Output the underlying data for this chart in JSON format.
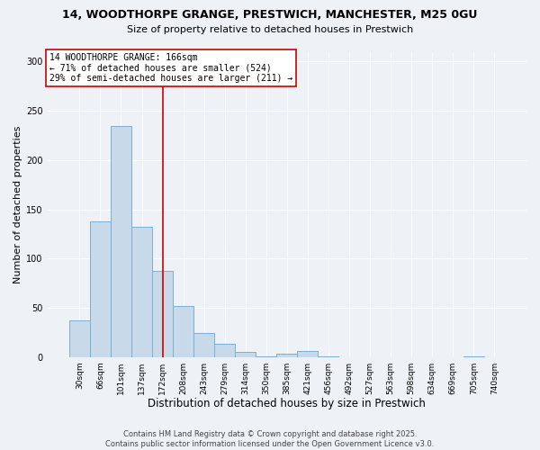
{
  "title": "14, WOODTHORPE GRANGE, PRESTWICH, MANCHESTER, M25 0GU",
  "subtitle": "Size of property relative to detached houses in Prestwich",
  "xlabel": "Distribution of detached houses by size in Prestwich",
  "ylabel": "Number of detached properties",
  "bar_labels": [
    "30sqm",
    "66sqm",
    "101sqm",
    "137sqm",
    "172sqm",
    "208sqm",
    "243sqm",
    "279sqm",
    "314sqm",
    "350sqm",
    "385sqm",
    "421sqm",
    "456sqm",
    "492sqm",
    "527sqm",
    "563sqm",
    "598sqm",
    "634sqm",
    "669sqm",
    "705sqm",
    "740sqm"
  ],
  "bar_values": [
    37,
    138,
    235,
    132,
    87,
    52,
    24,
    13,
    5,
    1,
    3,
    6,
    1,
    0,
    0,
    0,
    0,
    0,
    0,
    1,
    0
  ],
  "bar_color": "#c8daea",
  "bar_edge_color": "#7bafd4",
  "vline_x_index": 4,
  "vline_color": "#cc0000",
  "annotation_title": "14 WOODTHORPE GRANGE: 166sqm",
  "annotation_line1": "← 71% of detached houses are smaller (524)",
  "annotation_line2": "29% of semi-detached houses are larger (211) →",
  "annotation_box_color": "#ffffff",
  "annotation_box_edge": "#cc0000",
  "ylim": [
    0,
    310
  ],
  "yticks": [
    0,
    50,
    100,
    150,
    200,
    250,
    300
  ],
  "footer1": "Contains HM Land Registry data © Crown copyright and database right 2025.",
  "footer2": "Contains public sector information licensed under the Open Government Licence v3.0.",
  "bg_color": "#eef2f7",
  "grid_color": "#ffffff",
  "title_fontsize": 9,
  "subtitle_fontsize": 8,
  "xlabel_fontsize": 8.5,
  "ylabel_fontsize": 8,
  "tick_fontsize": 6.5,
  "footer_fontsize": 6,
  "ann_fontsize": 7
}
